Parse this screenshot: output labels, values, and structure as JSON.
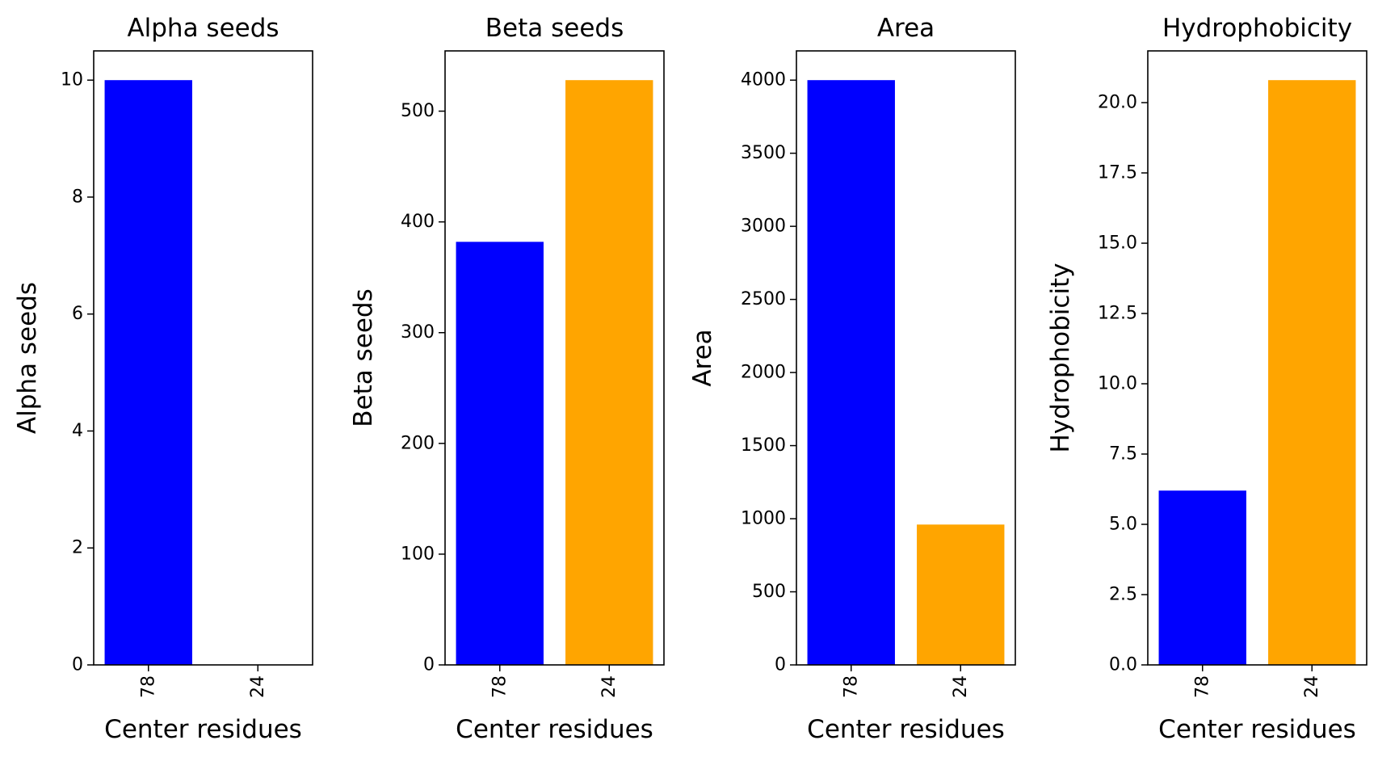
{
  "chart_data": [
    {
      "type": "bar",
      "title": "Alpha seeds",
      "xlabel": "Center residues",
      "ylabel": "Alpha seeds",
      "categories": [
        "78",
        "24"
      ],
      "values": [
        10,
        0
      ],
      "colors": [
        "#0000ff",
        "#ffa500"
      ],
      "ylim": [
        0,
        10.5
      ],
      "yticks": [
        0,
        2,
        4,
        6,
        8,
        10
      ],
      "ytick_labels": [
        "0",
        "2",
        "4",
        "6",
        "8",
        "10"
      ],
      "grid": false,
      "xtick_rotation": "vertical"
    },
    {
      "type": "bar",
      "title": "Beta seeds",
      "xlabel": "Center residues",
      "ylabel": "Beta seeds",
      "categories": [
        "78",
        "24"
      ],
      "values": [
        382,
        528
      ],
      "colors": [
        "#0000ff",
        "#ffa500"
      ],
      "ylim": [
        0,
        554.4
      ],
      "yticks": [
        0,
        100,
        200,
        300,
        400,
        500
      ],
      "ytick_labels": [
        "0",
        "100",
        "200",
        "300",
        "400",
        "500"
      ],
      "grid": false,
      "xtick_rotation": "vertical"
    },
    {
      "type": "bar",
      "title": "Area",
      "xlabel": "Center residues",
      "ylabel": "Area",
      "categories": [
        "78",
        "24"
      ],
      "values": [
        4000,
        960
      ],
      "colors": [
        "#0000ff",
        "#ffa500"
      ],
      "ylim": [
        0,
        4200
      ],
      "yticks": [
        0,
        500,
        1000,
        1500,
        2000,
        2500,
        3000,
        3500,
        4000
      ],
      "ytick_labels": [
        "0",
        "500",
        "1000",
        "1500",
        "2000",
        "2500",
        "3000",
        "3500",
        "4000"
      ],
      "grid": false,
      "xtick_rotation": "vertical"
    },
    {
      "type": "bar",
      "title": "Hydrophobicity",
      "xlabel": "Center residues",
      "ylabel": "Hydrophobicity",
      "categories": [
        "78",
        "24"
      ],
      "values": [
        6.2,
        20.8
      ],
      "colors": [
        "#0000ff",
        "#ffa500"
      ],
      "ylim": [
        0,
        21.84
      ],
      "yticks": [
        0,
        2.5,
        5,
        7.5,
        10,
        12.5,
        15,
        17.5,
        20
      ],
      "ytick_labels": [
        "0.0",
        "2.5",
        "5.0",
        "7.5",
        "10.0",
        "12.5",
        "15.0",
        "17.5",
        "20.0"
      ],
      "grid": false,
      "xtick_rotation": "vertical"
    }
  ]
}
